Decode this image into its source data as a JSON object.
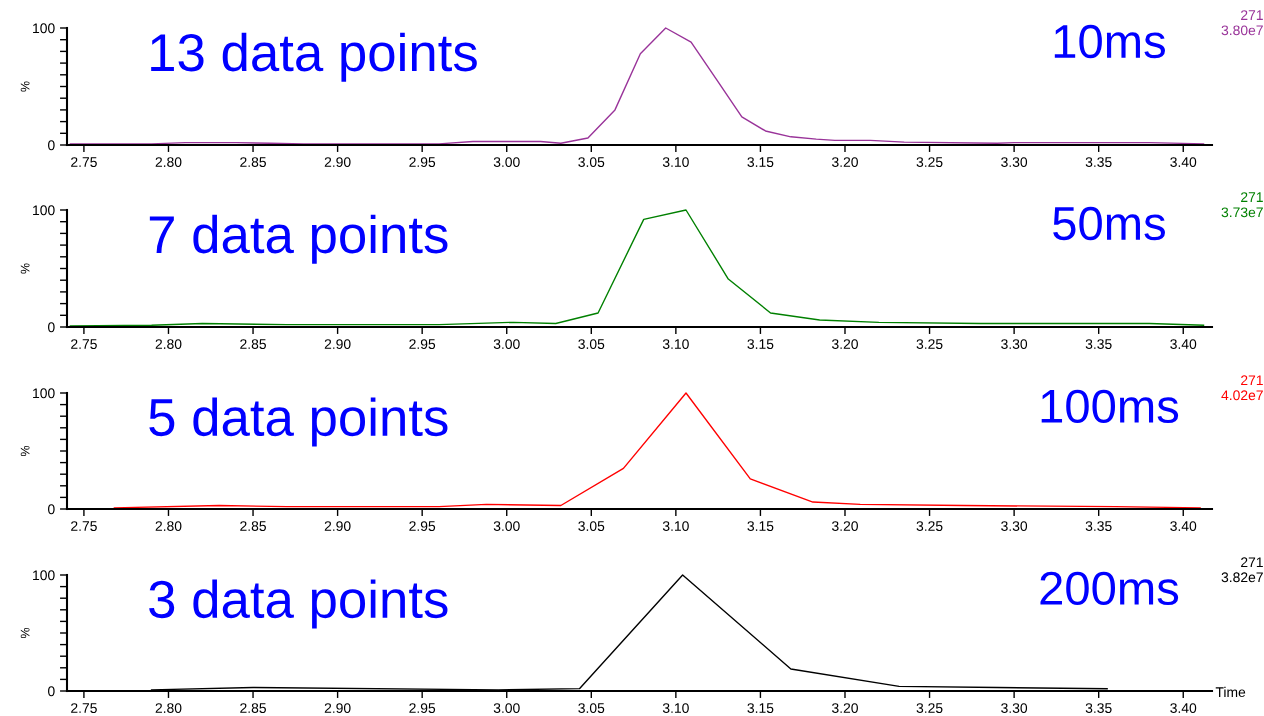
{
  "chart_data": [
    {
      "type": "line",
      "ylabel": "%",
      "xlim": [
        2.74,
        3.417
      ],
      "ylim": [
        0,
        100
      ],
      "yticks": [
        0,
        {
          "value": 10,
          "label": null
        },
        {
          "value": 20,
          "label": null
        },
        {
          "value": 30,
          "label": null
        },
        {
          "value": 40,
          "label": null
        },
        {
          "value": 50,
          "label": null
        },
        {
          "value": 60,
          "label": null
        },
        {
          "value": 70,
          "label": null
        },
        {
          "value": 80,
          "label": null
        },
        {
          "value": 90,
          "label": null
        },
        100
      ],
      "xticks": [
        {
          "value": 2.75,
          "label": "2.75"
        },
        {
          "value": 2.8,
          "label": "2.80"
        },
        {
          "value": 2.85,
          "label": "2.85"
        },
        {
          "value": 2.9,
          "label": "2.90"
        },
        {
          "value": 2.95,
          "label": "2.95"
        },
        {
          "value": 3.0,
          "label": "3.00"
        },
        {
          "value": 3.05,
          "label": "3.05"
        },
        {
          "value": 3.1,
          "label": "3.10"
        },
        {
          "value": 3.15,
          "label": "3.15"
        },
        {
          "value": 3.2,
          "label": "3.20"
        },
        {
          "value": 3.25,
          "label": "3.25"
        },
        {
          "value": 3.3,
          "label": "3.30"
        },
        {
          "value": 3.35,
          "label": "3.35"
        },
        {
          "value": 3.4,
          "label": "3.40"
        }
      ],
      "annotations": [
        "13 data points",
        "10ms",
        "271",
        "3.80e7"
      ],
      "series": [
        {
          "color": "#993399",
          "x": [
            2.742,
            2.79,
            2.81,
            2.84,
            2.86,
            2.88,
            2.96,
            2.98,
            3.02,
            3.032,
            3.048,
            3.064,
            3.079,
            3.094,
            3.109,
            3.125,
            3.139,
            3.153,
            3.168,
            3.183,
            3.194,
            3.215,
            3.235,
            3.29,
            3.3,
            3.38,
            3.412
          ],
          "values": [
            1,
            1,
            2,
            2,
            1.5,
            1,
            1,
            3,
            3,
            1.5,
            6,
            30,
            78,
            100,
            88,
            54,
            24,
            12,
            7,
            5,
            4,
            4,
            2.5,
            1.5,
            2,
            2,
            1
          ]
        }
      ]
    },
    {
      "type": "line",
      "ylabel": "%",
      "xlim": [
        2.74,
        3.417
      ],
      "ylim": [
        0,
        100
      ],
      "yticks": [
        0,
        {
          "value": 10,
          "label": null
        },
        {
          "value": 20,
          "label": null
        },
        {
          "value": 30,
          "label": null
        },
        {
          "value": 40,
          "label": null
        },
        {
          "value": 50,
          "label": null
        },
        {
          "value": 60,
          "label": null
        },
        {
          "value": 70,
          "label": null
        },
        {
          "value": 80,
          "label": null
        },
        {
          "value": 90,
          "label": null
        },
        100
      ],
      "xticks": [
        {
          "value": 2.75,
          "label": "2.75"
        },
        {
          "value": 2.8,
          "label": "2.80"
        },
        {
          "value": 2.85,
          "label": "2.85"
        },
        {
          "value": 2.9,
          "label": "2.90"
        },
        {
          "value": 2.95,
          "label": "2.95"
        },
        {
          "value": 3.0,
          "label": "3.00"
        },
        {
          "value": 3.05,
          "label": "3.05"
        },
        {
          "value": 3.1,
          "label": "3.10"
        },
        {
          "value": 3.15,
          "label": "3.15"
        },
        {
          "value": 3.2,
          "label": "3.20"
        },
        {
          "value": 3.25,
          "label": "3.25"
        },
        {
          "value": 3.3,
          "label": "3.30"
        },
        {
          "value": 3.35,
          "label": "3.35"
        },
        {
          "value": 3.4,
          "label": "3.40"
        }
      ],
      "annotations": [
        "7 data points",
        "50ms",
        "271",
        "3.73e7"
      ],
      "series": [
        {
          "color": "#008000",
          "x": [
            2.742,
            2.79,
            2.82,
            2.87,
            2.96,
            3.004,
            3.029,
            3.054,
            3.081,
            3.106,
            3.131,
            3.156,
            3.185,
            3.22,
            3.28,
            3.38,
            3.412
          ],
          "values": [
            1,
            1.5,
            3,
            2,
            2,
            4,
            3,
            12,
            92,
            100,
            41,
            12,
            6,
            4,
            3,
            3,
            1.5
          ]
        }
      ]
    },
    {
      "type": "line",
      "ylabel": "%",
      "xlim": [
        2.74,
        3.417
      ],
      "ylim": [
        0,
        100
      ],
      "yticks": [
        0,
        {
          "value": 10,
          "label": null
        },
        {
          "value": 20,
          "label": null
        },
        {
          "value": 30,
          "label": null
        },
        {
          "value": 40,
          "label": null
        },
        {
          "value": 50,
          "label": null
        },
        {
          "value": 60,
          "label": null
        },
        {
          "value": 70,
          "label": null
        },
        {
          "value": 80,
          "label": null
        },
        {
          "value": 90,
          "label": null
        },
        100
      ],
      "xticks": [
        {
          "value": 2.75,
          "label": "2.75"
        },
        {
          "value": 2.8,
          "label": "2.80"
        },
        {
          "value": 2.85,
          "label": "2.85"
        },
        {
          "value": 2.9,
          "label": "2.90"
        },
        {
          "value": 2.95,
          "label": "2.95"
        },
        {
          "value": 3.0,
          "label": "3.00"
        },
        {
          "value": 3.05,
          "label": "3.05"
        },
        {
          "value": 3.1,
          "label": "3.10"
        },
        {
          "value": 3.15,
          "label": "3.15"
        },
        {
          "value": 3.2,
          "label": "3.20"
        },
        {
          "value": 3.25,
          "label": "3.25"
        },
        {
          "value": 3.3,
          "label": "3.30"
        },
        {
          "value": 3.35,
          "label": "3.35"
        },
        {
          "value": 3.4,
          "label": "3.40"
        }
      ],
      "annotations": [
        "5 data points",
        "100ms",
        "271",
        "4.02e7"
      ],
      "series": [
        {
          "color": "#ff0000",
          "x": [
            2.768,
            2.83,
            2.87,
            2.96,
            2.988,
            3.032,
            3.069,
            3.106,
            3.144,
            3.181,
            3.209,
            3.27,
            3.36,
            3.41
          ],
          "values": [
            1,
            3,
            2,
            2,
            4,
            3,
            35,
            100,
            26,
            6,
            4,
            3,
            2,
            1
          ]
        }
      ]
    },
    {
      "type": "line",
      "ylabel": "%",
      "xlabel": "Time",
      "xlim": [
        2.74,
        3.417
      ],
      "ylim": [
        0,
        100
      ],
      "yticks": [
        0,
        {
          "value": 10,
          "label": null
        },
        {
          "value": 20,
          "label": null
        },
        {
          "value": 30,
          "label": null
        },
        {
          "value": 40,
          "label": null
        },
        {
          "value": 50,
          "label": null
        },
        {
          "value": 60,
          "label": null
        },
        {
          "value": 70,
          "label": null
        },
        {
          "value": 80,
          "label": null
        },
        {
          "value": 90,
          "label": null
        },
        100
      ],
      "xticks": [
        {
          "value": 2.75,
          "label": "2.75"
        },
        {
          "value": 2.8,
          "label": "2.80"
        },
        {
          "value": 2.85,
          "label": "2.85"
        },
        {
          "value": 2.9,
          "label": "2.90"
        },
        {
          "value": 2.95,
          "label": "2.95"
        },
        {
          "value": 3.0,
          "label": "3.00"
        },
        {
          "value": 3.05,
          "label": "3.05"
        },
        {
          "value": 3.1,
          "label": "3.10"
        },
        {
          "value": 3.15,
          "label": "3.15"
        },
        {
          "value": 3.2,
          "label": "3.20"
        },
        {
          "value": 3.25,
          "label": "3.25"
        },
        {
          "value": 3.3,
          "label": "3.30"
        },
        {
          "value": 3.35,
          "label": "3.35"
        },
        {
          "value": 3.4,
          "label": "3.40"
        }
      ],
      "annotations": [
        "3 data points",
        "200ms",
        "271",
        "3.82e7"
      ],
      "series": [
        {
          "color": "#000000",
          "x": [
            2.79,
            2.85,
            2.995,
            3.043,
            3.104,
            3.168,
            3.232,
            3.29,
            3.355
          ],
          "values": [
            1,
            3,
            1,
            2,
            100,
            19,
            4,
            3,
            2
          ]
        }
      ]
    }
  ]
}
